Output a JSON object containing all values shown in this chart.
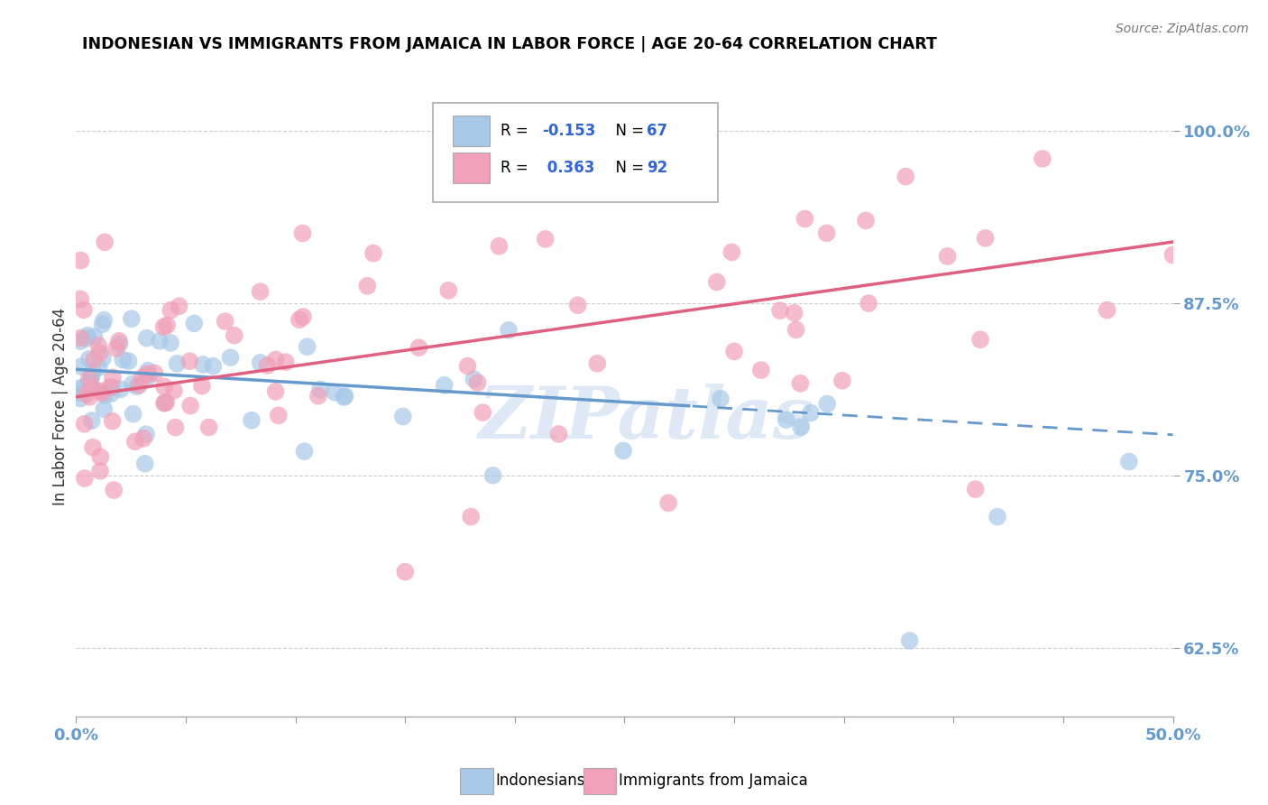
{
  "title": "INDONESIAN VS IMMIGRANTS FROM JAMAICA IN LABOR FORCE | AGE 20-64 CORRELATION CHART",
  "source": "Source: ZipAtlas.com",
  "xmin": 0.0,
  "xmax": 0.5,
  "ymin": 0.575,
  "ymax": 1.025,
  "ytick_labels": [
    "62.5%",
    "75.0%",
    "87.5%",
    "100.0%"
  ],
  "ytick_vals": [
    0.625,
    0.75,
    0.875,
    1.0
  ],
  "blue_color": "#a8c8e8",
  "pink_color": "#f0a0b8",
  "blue_line_color": "#6699cc",
  "pink_line_color": "#e06080",
  "watermark": "ZIPatlas",
  "blue_line_solid_end": 0.28,
  "blue_intercept": 0.827,
  "blue_slope": -0.095,
  "pink_intercept": 0.807,
  "pink_slope": 0.225,
  "legend_text1_r": "R = -0.153",
  "legend_text1_n": "N = 67",
  "legend_text2_r": "R =  0.363",
  "legend_text2_n": "N = 92",
  "legend_color_r": "#3366cc",
  "title_color": "#333333"
}
